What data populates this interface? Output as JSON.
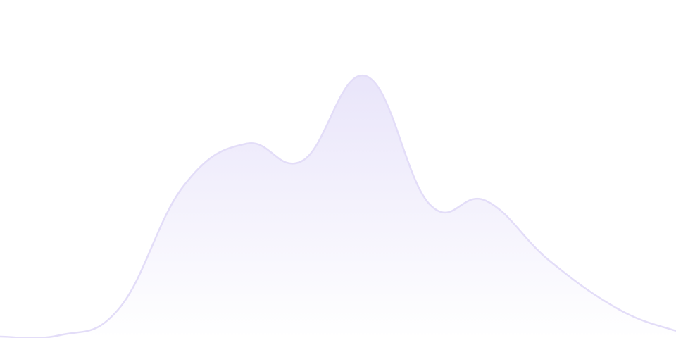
{
  "chart_data": {
    "type": "area",
    "x": [
      0,
      1,
      2,
      3,
      4,
      5,
      6,
      7,
      8,
      9,
      10,
      11
    ],
    "values": [
      2,
      4,
      43,
      215,
      276,
      252,
      372,
      190,
      195,
      110,
      40,
      10
    ],
    "ylim": [
      0,
      480
    ],
    "grid": false,
    "axes": false,
    "legend": "none",
    "colors": {
      "stroke": "#e3ddf8",
      "fill_top": "#e9e5fa",
      "fill_bottom": "#ffffff"
    }
  }
}
